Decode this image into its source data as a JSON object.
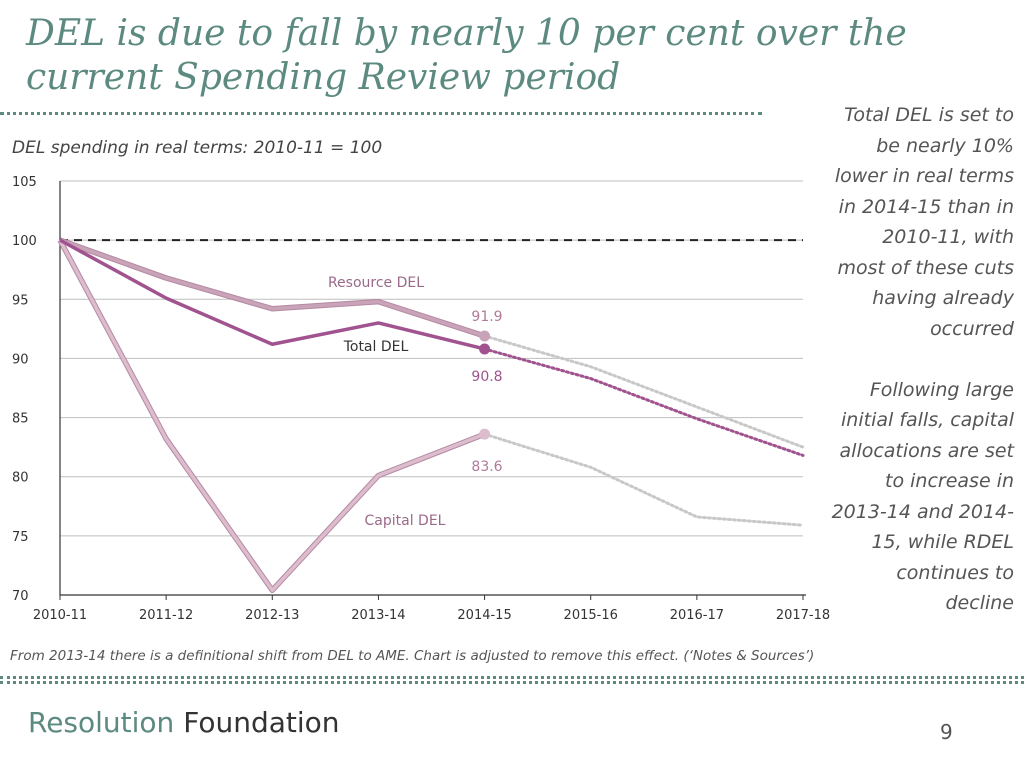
{
  "slide": {
    "title": "DEL is due to fall by nearly 10 per cent over the current Spending Review period",
    "side_paragraph_1": "Total DEL is set to be nearly 10% lower in real terms in 2014-15 than in 2010-11, with most of these cuts having already occurred",
    "side_paragraph_2": "Following large initial falls, capital allocations are set to increase in 2013-14 and 2014-15, while RDEL continues to decline",
    "note": "From 2013-14 there is a definitional shift from DEL to AME. Chart is adjusted to remove this effect. (‘Notes & Sources’)",
    "brand_part1": "Resolution",
    "brand_part2": "Foundation",
    "page_number": "9"
  },
  "colors": {
    "accent": "#5d8a80",
    "total_del": "#a0538e",
    "resource_del": "#c9a3b8",
    "capital_del": "#dcbccd",
    "projection_grey": "#c8c8c8"
  },
  "chart_data": {
    "type": "line",
    "title": "DEL spending in real terms: 2010-11 = 100",
    "categories": [
      "2010-11",
      "2011-12",
      "2012-13",
      "2013-14",
      "2014-15",
      "2015-16",
      "2016-17",
      "2017-18"
    ],
    "ylim": [
      70,
      105
    ],
    "yticks": [
      70,
      75,
      80,
      85,
      90,
      95,
      100,
      105
    ],
    "reference_line": 100,
    "series": [
      {
        "name": "Resource DEL",
        "values": [
          100,
          96.8,
          94.2,
          94.8,
          91.9,
          89.3,
          85.9,
          82.5
        ],
        "actual_until_index": 4,
        "end_label": "91.9"
      },
      {
        "name": "Total DEL",
        "values": [
          100,
          95.1,
          91.2,
          93.0,
          90.8,
          88.3,
          84.9,
          81.8
        ],
        "actual_until_index": 4,
        "end_label": "90.8"
      },
      {
        "name": "Capital DEL",
        "values": [
          100,
          83.2,
          70.4,
          80.1,
          83.6,
          80.8,
          76.6,
          75.9
        ],
        "actual_until_index": 4,
        "end_label": "83.6"
      }
    ]
  }
}
